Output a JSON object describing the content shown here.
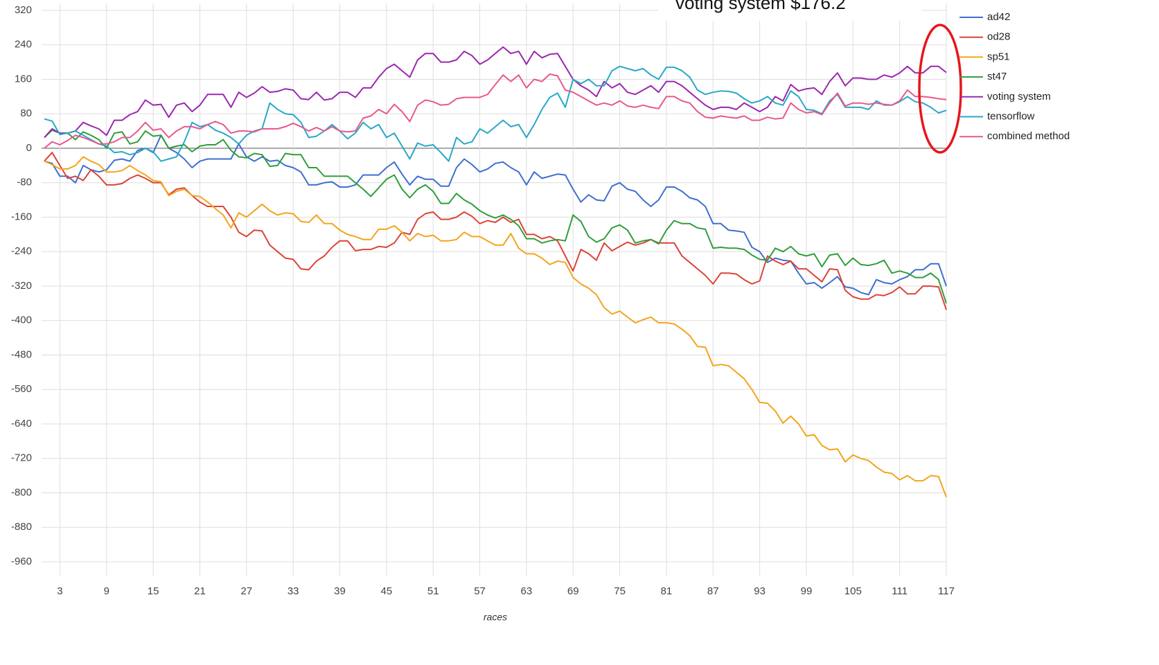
{
  "chart_data": {
    "type": "line",
    "annotation": "voting system $176.2",
    "xlabel": "races",
    "legend": "right",
    "grid": true,
    "xlim": [
      1,
      117
    ],
    "ylim": [
      -960,
      320
    ],
    "xticks": [
      3,
      9,
      15,
      21,
      27,
      33,
      39,
      45,
      51,
      57,
      63,
      69,
      75,
      81,
      87,
      93,
      99,
      105,
      111,
      117
    ],
    "yticks": [
      320,
      240,
      160,
      80,
      0,
      -80,
      -160,
      -240,
      -320,
      -400,
      -480,
      -560,
      -640,
      -720,
      -800,
      -880,
      -960
    ],
    "x": [
      1,
      2,
      3,
      4,
      5,
      6,
      7,
      8,
      9,
      10,
      11,
      12,
      13,
      14,
      15,
      16,
      17,
      18,
      19,
      20,
      21,
      22,
      23,
      24,
      25,
      26,
      27,
      28,
      29,
      30,
      31,
      32,
      33,
      34,
      35,
      36,
      37,
      38,
      39,
      40,
      41,
      42,
      43,
      44,
      45,
      46,
      47,
      48,
      49,
      50,
      51,
      52,
      53,
      54,
      55,
      56,
      57,
      58,
      59,
      60,
      61,
      62,
      63,
      64,
      65,
      66,
      67,
      68,
      69,
      70,
      71,
      72,
      73,
      74,
      75,
      76,
      77,
      78,
      79,
      80,
      81,
      82,
      83,
      84,
      85,
      86,
      87,
      88,
      89,
      90,
      91,
      92,
      93,
      94,
      95,
      96,
      97,
      98,
      99,
      100,
      101,
      102,
      103,
      104,
      105,
      106,
      107,
      108,
      109,
      110,
      111,
      112,
      113,
      114,
      115,
      116,
      117
    ],
    "series": [
      {
        "name": "ad42",
        "color": "#3d6fcf",
        "values": [
          -30,
          -35,
          -65,
          -65,
          -80,
          -40,
          -50,
          -55,
          -50,
          -28,
          -25,
          -30,
          -5,
          0,
          -10,
          30,
          0,
          -10,
          -25,
          -45,
          -30,
          -25,
          -25,
          -25,
          -25,
          10,
          -20,
          -30,
          -20,
          -30,
          -28,
          -40,
          -45,
          -55,
          -85,
          -85,
          -80,
          -78,
          -90,
          -90,
          -85,
          -62,
          -62,
          -62,
          -45,
          -32,
          -60,
          -85,
          -65,
          -72,
          -72,
          -88,
          -88,
          -45,
          -25,
          -38,
          -55,
          -48,
          -35,
          -32,
          -45,
          -55,
          -85,
          -55,
          -70,
          -65,
          -60,
          -62,
          -95,
          -125,
          -108,
          -120,
          -122,
          -88,
          -80,
          -95,
          -100,
          -120,
          -135,
          -120,
          -90,
          -90,
          -100,
          -115,
          -120,
          -135,
          -175,
          -175,
          -190,
          -192,
          -195,
          -230,
          -240,
          -265,
          -255,
          -260,
          -262,
          -290,
          -315,
          -312,
          -325,
          -312,
          -298,
          -322,
          -325,
          -335,
          -340,
          -305,
          -312,
          -315,
          -305,
          -298,
          -282,
          -282,
          -268,
          -268,
          -320
        ]
      },
      {
        "name": "od28",
        "color": "#db4437",
        "values": [
          -30,
          -10,
          -40,
          -70,
          -65,
          -75,
          -50,
          -65,
          -85,
          -85,
          -82,
          -70,
          -62,
          -70,
          -80,
          -80,
          -108,
          -95,
          -92,
          -110,
          -125,
          -135,
          -135,
          -135,
          -160,
          -195,
          -205,
          -190,
          -192,
          -225,
          -240,
          -255,
          -258,
          -280,
          -282,
          -262,
          -250,
          -230,
          -215,
          -215,
          -238,
          -235,
          -235,
          -228,
          -230,
          -220,
          -195,
          -200,
          -165,
          -152,
          -148,
          -165,
          -165,
          -160,
          -148,
          -158,
          -175,
          -168,
          -172,
          -160,
          -172,
          -165,
          -200,
          -200,
          -210,
          -205,
          -215,
          -250,
          -285,
          -235,
          -245,
          -260,
          -220,
          -238,
          -228,
          -218,
          -225,
          -220,
          -212,
          -220,
          -220,
          -220,
          -250,
          -265,
          -280,
          -295,
          -315,
          -290,
          -290,
          -292,
          -305,
          -315,
          -308,
          -250,
          -262,
          -270,
          -262,
          -280,
          -280,
          -295,
          -310,
          -280,
          -282,
          -330,
          -345,
          -350,
          -350,
          -340,
          -342,
          -335,
          -322,
          -338,
          -338,
          -320,
          -320,
          -322,
          -375
        ]
      },
      {
        "name": "sp51",
        "color": "#f4a41c",
        "values": [
          -30,
          -38,
          -48,
          -48,
          -40,
          -20,
          -30,
          -38,
          -55,
          -55,
          -52,
          -40,
          -52,
          -62,
          -75,
          -78,
          -110,
          -100,
          -95,
          -110,
          -112,
          -125,
          -140,
          -155,
          -185,
          -150,
          -160,
          -145,
          -130,
          -145,
          -155,
          -150,
          -152,
          -170,
          -172,
          -155,
          -175,
          -175,
          -190,
          -200,
          -205,
          -212,
          -212,
          -188,
          -188,
          -180,
          -195,
          -215,
          -198,
          -205,
          -202,
          -215,
          -215,
          -212,
          -195,
          -205,
          -205,
          -215,
          -225,
          -225,
          -198,
          -232,
          -245,
          -245,
          -255,
          -270,
          -262,
          -265,
          -300,
          -315,
          -325,
          -340,
          -370,
          -385,
          -378,
          -392,
          -405,
          -398,
          -392,
          -405,
          -405,
          -408,
          -420,
          -435,
          -460,
          -462,
          -505,
          -502,
          -505,
          -520,
          -535,
          -560,
          -590,
          -592,
          -610,
          -638,
          -622,
          -640,
          -668,
          -665,
          -690,
          -700,
          -698,
          -728,
          -712,
          -720,
          -725,
          -740,
          -752,
          -755,
          -770,
          -760,
          -772,
          -772,
          -760,
          -762,
          -810
        ]
      },
      {
        "name": "st47",
        "color": "#2f9e3b",
        "values": [
          25,
          42,
          35,
          35,
          20,
          38,
          30,
          20,
          0,
          35,
          38,
          10,
          15,
          40,
          28,
          30,
          0,
          5,
          8,
          -8,
          5,
          8,
          8,
          20,
          -5,
          -20,
          -22,
          -12,
          -15,
          -42,
          -40,
          -12,
          -15,
          -15,
          -45,
          -45,
          -65,
          -65,
          -65,
          -65,
          -80,
          -95,
          -112,
          -92,
          -72,
          -62,
          -95,
          -115,
          -95,
          -85,
          -100,
          -128,
          -128,
          -105,
          -120,
          -130,
          -145,
          -155,
          -162,
          -155,
          -165,
          -180,
          -210,
          -210,
          -220,
          -215,
          -212,
          -215,
          -155,
          -170,
          -205,
          -218,
          -210,
          -185,
          -178,
          -190,
          -220,
          -215,
          -212,
          -222,
          -190,
          -168,
          -175,
          -175,
          -185,
          -188,
          -232,
          -230,
          -232,
          -232,
          -235,
          -248,
          -258,
          -260,
          -232,
          -240,
          -228,
          -245,
          -250,
          -245,
          -275,
          -248,
          -245,
          -272,
          -255,
          -270,
          -272,
          -268,
          -260,
          -290,
          -285,
          -290,
          -300,
          -300,
          -290,
          -305,
          -360
        ]
      },
      {
        "name": "voting system",
        "color": "#9b27af",
        "values": [
          25,
          45,
          35,
          35,
          40,
          60,
          52,
          45,
          30,
          65,
          65,
          78,
          85,
          112,
          100,
          102,
          72,
          100,
          105,
          85,
          100,
          125,
          125,
          125,
          95,
          130,
          118,
          128,
          143,
          130,
          132,
          138,
          135,
          115,
          113,
          130,
          112,
          115,
          130,
          130,
          118,
          140,
          140,
          165,
          185,
          195,
          180,
          165,
          205,
          220,
          220,
          200,
          200,
          205,
          225,
          215,
          195,
          205,
          220,
          235,
          220,
          225,
          195,
          225,
          210,
          218,
          220,
          190,
          160,
          145,
          135,
          120,
          155,
          140,
          150,
          130,
          125,
          135,
          145,
          130,
          155,
          155,
          145,
          130,
          115,
          100,
          90,
          95,
          95,
          90,
          105,
          95,
          85,
          95,
          120,
          110,
          148,
          133,
          138,
          140,
          125,
          155,
          175,
          145,
          163,
          163,
          160,
          160,
          170,
          165,
          175,
          190,
          175,
          175,
          190,
          190,
          176
        ]
      },
      {
        "name": "tensorflow",
        "color": "#27a8c8",
        "values": [
          68,
          63,
          32,
          35,
          40,
          30,
          20,
          10,
          5,
          -10,
          -8,
          -15,
          -10,
          0,
          -8,
          -30,
          -25,
          -20,
          15,
          60,
          50,
          55,
          42,
          35,
          25,
          10,
          30,
          40,
          45,
          105,
          90,
          80,
          78,
          60,
          25,
          28,
          40,
          55,
          40,
          22,
          35,
          60,
          45,
          55,
          25,
          35,
          5,
          -25,
          12,
          5,
          8,
          -10,
          -30,
          25,
          10,
          15,
          45,
          35,
          50,
          65,
          50,
          55,
          25,
          55,
          90,
          118,
          128,
          95,
          160,
          150,
          160,
          145,
          145,
          180,
          190,
          185,
          180,
          185,
          170,
          160,
          188,
          188,
          180,
          165,
          135,
          125,
          130,
          133,
          132,
          128,
          115,
          105,
          110,
          120,
          105,
          100,
          133,
          120,
          90,
          88,
          80,
          110,
          125,
          95,
          95,
          95,
          90,
          110,
          100,
          100,
          108,
          120,
          108,
          105,
          95,
          82,
          88
        ]
      },
      {
        "name": "combined method",
        "color": "#e8588b",
        "values": [
          0,
          15,
          8,
          18,
          30,
          25,
          18,
          10,
          10,
          15,
          25,
          25,
          40,
          60,
          42,
          45,
          25,
          40,
          50,
          50,
          45,
          55,
          62,
          55,
          35,
          40,
          40,
          38,
          45,
          45,
          45,
          50,
          58,
          50,
          40,
          48,
          40,
          50,
          40,
          38,
          40,
          70,
          75,
          90,
          80,
          102,
          85,
          62,
          100,
          112,
          108,
          100,
          102,
          115,
          118,
          118,
          118,
          125,
          148,
          170,
          155,
          170,
          140,
          160,
          155,
          172,
          168,
          135,
          130,
          120,
          110,
          100,
          105,
          100,
          110,
          98,
          95,
          100,
          95,
          92,
          120,
          120,
          110,
          105,
          85,
          72,
          70,
          75,
          72,
          70,
          75,
          65,
          65,
          72,
          68,
          70,
          105,
          90,
          82,
          85,
          78,
          105,
          128,
          98,
          105,
          105,
          102,
          105,
          102,
          100,
          110,
          135,
          120,
          120,
          118,
          115,
          113
        ]
      }
    ]
  }
}
